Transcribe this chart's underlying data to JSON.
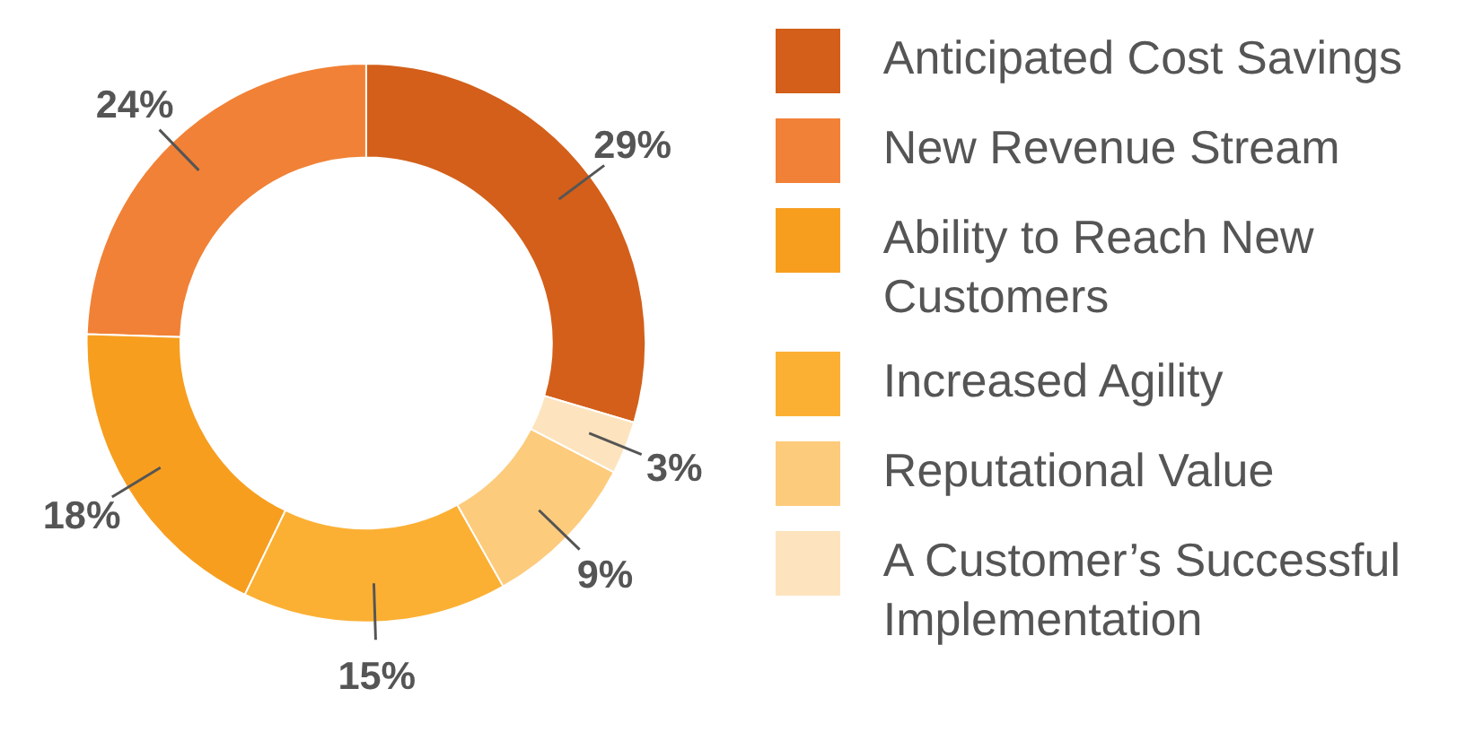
{
  "chart_data": {
    "type": "donut",
    "categories": [
      "Anticipated Cost Savings",
      "New Revenue Stream",
      "Ability to Reach New Customers",
      "Increased Agility",
      "Reputational Value",
      "A Customer’s Successful Implementation"
    ],
    "values": [
      29,
      24,
      18,
      15,
      9,
      3
    ],
    "value_labels": [
      "29%",
      "24%",
      "18%",
      "15%",
      "9%",
      "3%"
    ],
    "colors": [
      "#d35f1a",
      "#f18136",
      "#f79e1f",
      "#fbb034",
      "#fdcb7c",
      "#fde4bf"
    ],
    "legend": "right"
  }
}
